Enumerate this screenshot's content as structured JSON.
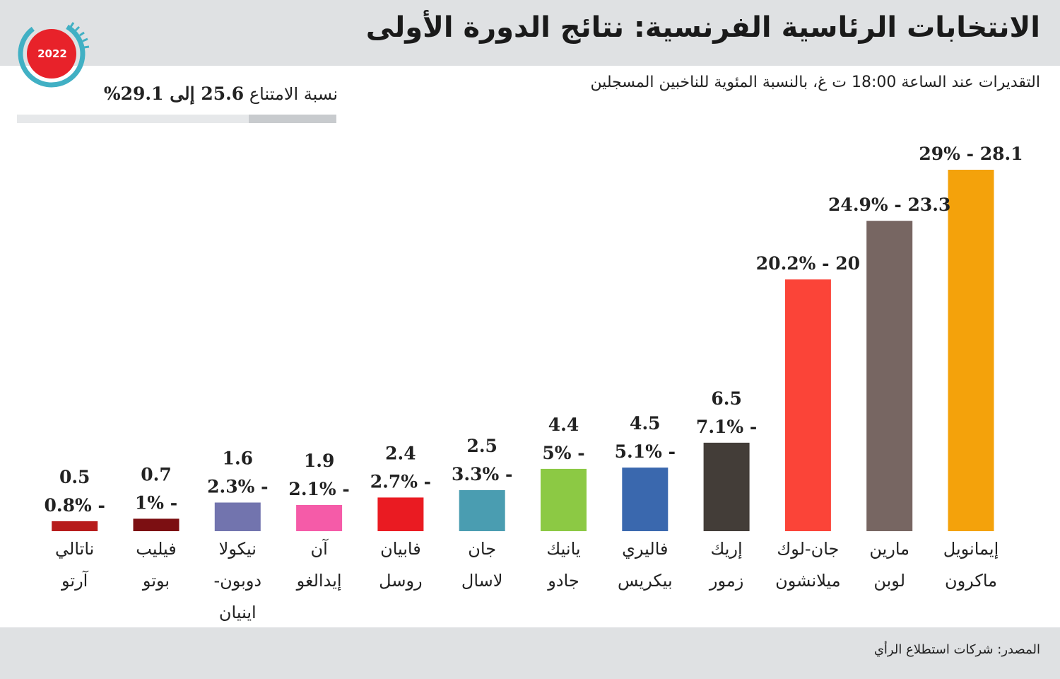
{
  "header": {
    "title": "الانتخابات الرئاسية الفرنسية: نتائج الدورة الأولى",
    "subtitle": "التقديرات عند الساعة 18:00 ت غ، بالنسبة المئوية للناخبين المسجلين",
    "year_badge": "2022"
  },
  "abstention": {
    "label": "نسبة الامتناع",
    "value_text": "25.6 إلى 29.1%",
    "low": 25.6,
    "high": 29.1
  },
  "footer": {
    "source": "المصدر: شركات استطلاع الرأي"
  },
  "chart_data": {
    "type": "bar",
    "categories": [
      [
        "إيمانويل",
        "ماكرون"
      ],
      [
        "مارين",
        "لوبن"
      ],
      [
        "جان-لوك",
        "ميلانشون"
      ],
      [
        "إريك",
        "زمور"
      ],
      [
        "فاليري",
        "بيكريس"
      ],
      [
        "يانيك",
        "جادو"
      ],
      [
        "جان",
        "لاسال"
      ],
      [
        "فابيان",
        "روسل"
      ],
      [
        "آن",
        "إيدالغو"
      ],
      [
        "نيكولا",
        "دوبون-",
        "اينيان"
      ],
      [
        "فيليب",
        "بوتو"
      ],
      [
        "ناتالي",
        "آرتو"
      ]
    ],
    "series": [
      {
        "name": "low",
        "values": [
          28.1,
          23.3,
          20,
          6.5,
          4.5,
          4.4,
          2.5,
          2.4,
          1.9,
          1.6,
          0.7,
          0.5
        ]
      },
      {
        "name": "high",
        "values": [
          29,
          24.9,
          20.2,
          7.1,
          5.1,
          5,
          3.3,
          2.7,
          2.1,
          2.3,
          1,
          0.8
        ]
      }
    ],
    "labels": [
      [
        "29% - 28.1"
      ],
      [
        "24.9% - 23.3"
      ],
      [
        "20.2% - 20"
      ],
      [
        "6.5",
        "7.1% -"
      ],
      [
        "4.5",
        "5.1% -"
      ],
      [
        "4.4",
        "5% -"
      ],
      [
        "2.5",
        "3.3% -"
      ],
      [
        "2.4",
        "2.7% -"
      ],
      [
        "1.9",
        "2.1% -"
      ],
      [
        "1.6",
        "2.3% -"
      ],
      [
        "0.7",
        "1% -"
      ],
      [
        "0.5",
        "0.8% -"
      ]
    ],
    "colors": [
      "#f4a20b",
      "#776662",
      "#fb4438",
      "#433d38",
      "#3a68ae",
      "#8cc944",
      "#4a9db1",
      "#ea1b22",
      "#f55ba8",
      "#7274ae",
      "#7c0f12",
      "#b71c1c"
    ],
    "ylim": [
      0,
      29
    ],
    "x_order": "right-to-left",
    "grid": false,
    "legend": "none"
  },
  "colors": {
    "header_band": "#dfe1e3",
    "badge_red": "#e8222a",
    "badge_ring": "#41b0c4"
  }
}
